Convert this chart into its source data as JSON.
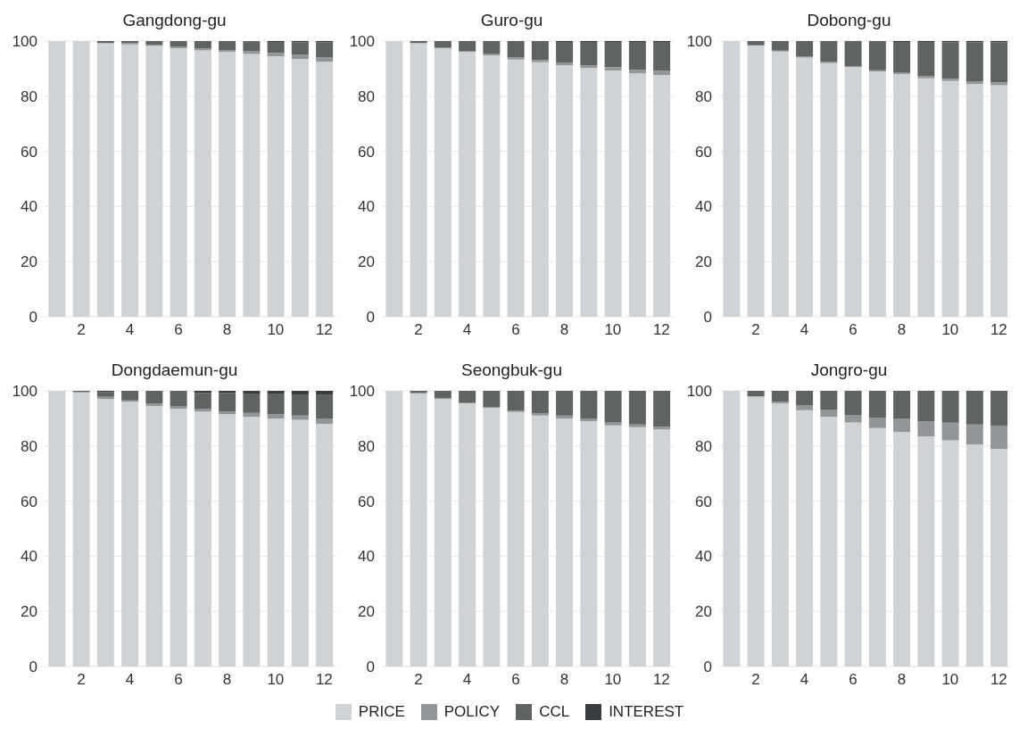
{
  "chart_data": [
    {
      "type": "bar",
      "title": "Gangdong-gu",
      "stacked": true,
      "categories": [
        null,
        "2",
        null,
        "4",
        null,
        "6",
        null,
        "8",
        null,
        "10",
        null,
        "12"
      ],
      "ylim": [
        0,
        100
      ],
      "yticks": [
        0,
        20,
        40,
        60,
        80,
        100
      ],
      "grid": "y",
      "legend": "bottom",
      "series": [
        {
          "name": "PRICE",
          "color": "#d0d3d6",
          "values": [
            100,
            100,
            99.3,
            98.8,
            98.2,
            97.3,
            96.6,
            96,
            95.3,
            94.5,
            93.5,
            92.5
          ]
        },
        {
          "name": "POLICY",
          "color": "#939698",
          "values": [
            0,
            0,
            0,
            0.4,
            0.5,
            0.6,
            0.7,
            0.8,
            1,
            1.2,
            1.5,
            1.7
          ]
        },
        {
          "name": "CCL",
          "color": "#5f6463",
          "values": [
            0,
            0,
            0.7,
            0.8,
            1.3,
            2.1,
            2.7,
            3.2,
            3.5,
            4,
            4.6,
            5.3
          ]
        },
        {
          "name": "INTEREST",
          "color": "#3a3d3f",
          "values": [
            0,
            0,
            0,
            0,
            0,
            0,
            0,
            0,
            0.2,
            0.3,
            0.4,
            0.5
          ]
        }
      ]
    },
    {
      "type": "bar",
      "title": "Guro-gu",
      "stacked": true,
      "categories": [
        null,
        "2",
        null,
        "4",
        null,
        "6",
        null,
        "8",
        null,
        "10",
        null,
        "12"
      ],
      "ylim": [
        0,
        100
      ],
      "yticks": [
        0,
        20,
        40,
        60,
        80,
        100
      ],
      "grid": "y",
      "series": [
        {
          "color": "#d0d3d6",
          "values": [
            100,
            99.3,
            97.3,
            96,
            94.8,
            93.3,
            92.3,
            91.2,
            90.2,
            89.3,
            88.3,
            87.7
          ]
        },
        {
          "color": "#939698",
          "values": [
            0,
            0,
            0.3,
            0.4,
            0.5,
            0.7,
            0.8,
            1,
            1,
            1.2,
            1.3,
            1.5
          ]
        },
        {
          "color": "#5f6463",
          "values": [
            0,
            0.7,
            2.4,
            3.6,
            4.7,
            6,
            6.9,
            7.5,
            8.5,
            9.2,
            10.1,
            10.5
          ]
        },
        {
          "color": "#3a3d3f",
          "values": [
            0,
            0,
            0,
            0,
            0,
            0,
            0,
            0.3,
            0.3,
            0.3,
            0.3,
            0.3
          ]
        }
      ]
    },
    {
      "type": "bar",
      "title": "Dobong-gu",
      "stacked": true,
      "categories": [
        null,
        "2",
        null,
        "4",
        null,
        "6",
        null,
        "8",
        null,
        "10",
        null,
        "12"
      ],
      "ylim": [
        0,
        100
      ],
      "yticks": [
        0,
        20,
        40,
        60,
        80,
        100
      ],
      "grid": "y",
      "series": [
        {
          "color": "#d0d3d6",
          "values": [
            100,
            98.5,
            96.2,
            94,
            92,
            90.5,
            89,
            88,
            86.5,
            85.5,
            84.5,
            84
          ]
        },
        {
          "color": "#939698",
          "values": [
            0,
            0,
            0.3,
            0.3,
            0.4,
            0.4,
            0.4,
            0.5,
            0.7,
            0.8,
            0.9,
            1
          ]
        },
        {
          "color": "#5f6463",
          "values": [
            0,
            1.5,
            3.5,
            5.7,
            7.6,
            9.1,
            10.6,
            11.2,
            12.5,
            13.2,
            14.1,
            14.5
          ]
        },
        {
          "color": "#3a3d3f",
          "values": [
            0,
            0,
            0,
            0,
            0,
            0,
            0,
            0.3,
            0.3,
            0.5,
            0.5,
            0.5
          ]
        }
      ]
    },
    {
      "type": "bar",
      "title": "Dongdaemun-gu",
      "stacked": true,
      "categories": [
        null,
        "2",
        null,
        "4",
        null,
        "6",
        null,
        "8",
        null,
        "10",
        null,
        "12"
      ],
      "ylim": [
        0,
        100
      ],
      "yticks": [
        0,
        20,
        40,
        60,
        80,
        100
      ],
      "grid": "y",
      "series": [
        {
          "color": "#d0d3d6",
          "values": [
            100,
            99.5,
            97,
            96,
            94.5,
            93.5,
            92.5,
            91.5,
            90.5,
            90,
            89.5,
            88
          ]
        },
        {
          "color": "#939698",
          "values": [
            0,
            0,
            0.8,
            0.5,
            1,
            0.8,
            1,
            1,
            1.5,
            1.5,
            1.5,
            2
          ]
        },
        {
          "color": "#5f6463",
          "values": [
            0,
            0.5,
            1.7,
            3.5,
            4.5,
            5.7,
            5.7,
            6.7,
            6.8,
            7.3,
            7.5,
            8.5
          ]
        },
        {
          "color": "#3a3d3f",
          "values": [
            0,
            0,
            0.5,
            0,
            0,
            0,
            0.8,
            0.8,
            1.2,
            1.2,
            1.5,
            1.5
          ]
        }
      ]
    },
    {
      "type": "bar",
      "title": "Seongbuk-gu",
      "stacked": true,
      "categories": [
        null,
        "2",
        null,
        "4",
        null,
        "6",
        null,
        "8",
        null,
        "10",
        null,
        "12"
      ],
      "ylim": [
        0,
        100
      ],
      "yticks": [
        0,
        20,
        40,
        60,
        80,
        100
      ],
      "grid": "y",
      "series": [
        {
          "color": "#d0d3d6",
          "values": [
            100,
            99,
            97,
            95.5,
            93.8,
            92.3,
            91,
            90,
            89,
            87.5,
            86.8,
            86
          ]
        },
        {
          "color": "#939698",
          "values": [
            0,
            0.3,
            0.3,
            0.3,
            0.4,
            0.4,
            0.8,
            1,
            1,
            1,
            1,
            1
          ]
        },
        {
          "color": "#5f6463",
          "values": [
            0,
            0.7,
            2.7,
            4.2,
            5.8,
            7.3,
            8.2,
            9,
            10,
            11.5,
            12.2,
            13
          ]
        },
        {
          "color": "#3a3d3f",
          "values": [
            0,
            0,
            0,
            0,
            0,
            0,
            0,
            0,
            0,
            0,
            0,
            0
          ]
        }
      ]
    },
    {
      "type": "bar",
      "title": "Jongro-gu",
      "stacked": true,
      "categories": [
        null,
        "2",
        null,
        "4",
        null,
        "6",
        null,
        "8",
        null,
        "10",
        null,
        "12"
      ],
      "ylim": [
        0,
        100
      ],
      "yticks": [
        0,
        20,
        40,
        60,
        80,
        100
      ],
      "grid": "y",
      "series": [
        {
          "color": "#d0d3d6",
          "values": [
            100,
            98,
            95.5,
            93,
            90.5,
            88.5,
            86.5,
            85,
            83.5,
            82,
            80.5,
            79
          ]
        },
        {
          "color": "#939698",
          "values": [
            0,
            0,
            0.5,
            1.8,
            2.7,
            2.8,
            3.8,
            4.8,
            5.4,
            6.4,
            7.3,
            8.4
          ]
        },
        {
          "color": "#5f6463",
          "values": [
            0,
            2,
            4,
            5.2,
            6.8,
            8.7,
            9.7,
            10.2,
            11.1,
            11.6,
            12.2,
            12.6
          ]
        },
        {
          "color": "#3a3d3f",
          "values": [
            0,
            0,
            0,
            0,
            0,
            0,
            0,
            0,
            0,
            0,
            0,
            0
          ]
        }
      ]
    }
  ]
}
